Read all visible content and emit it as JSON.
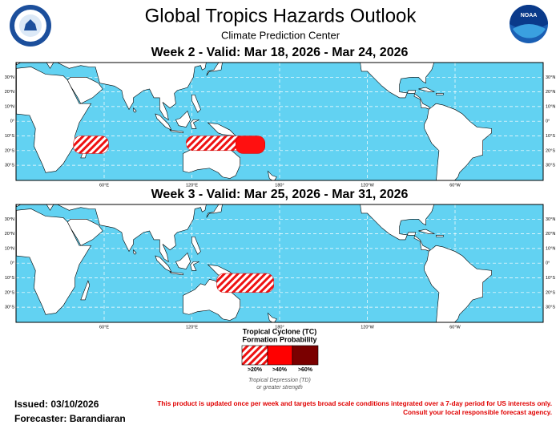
{
  "header": {
    "title": "Global Tropics Hazards Outlook",
    "subtitle": "Climate Prediction Center",
    "logo_text": "NOAA"
  },
  "maps": [
    {
      "title": "Week 2 - Valid: Mar 18, 2026 - Mar 24, 2026"
    },
    {
      "title": "Week 3 - Valid: Mar 25, 2026 - Mar 31, 2026"
    }
  ],
  "axes": {
    "lat_labels": [
      "30°N",
      "20°N",
      "10°N",
      "0°",
      "10°S",
      "20°S",
      "30°S"
    ],
    "lon_labels": [
      "60°E",
      "120°E",
      "180°",
      "120°W",
      "60°W"
    ]
  },
  "legend": {
    "title_lines": [
      "Tropical Cyclone (TC)",
      "Formation Probability"
    ],
    "levels": [
      ">20%",
      ">40%",
      ">60%"
    ],
    "note_lines": [
      "Tropical Depression (TD)",
      "or greater strength"
    ]
  },
  "footer": {
    "issued": "Issued: 03/10/2026",
    "forecaster": "Forecaster: Barandiaran",
    "disclaimer": [
      "This product is updated once per week and targets broad scale conditions integrated over a 7-day period for US interests only.",
      "Consult your local responsible forecast agency."
    ]
  }
}
